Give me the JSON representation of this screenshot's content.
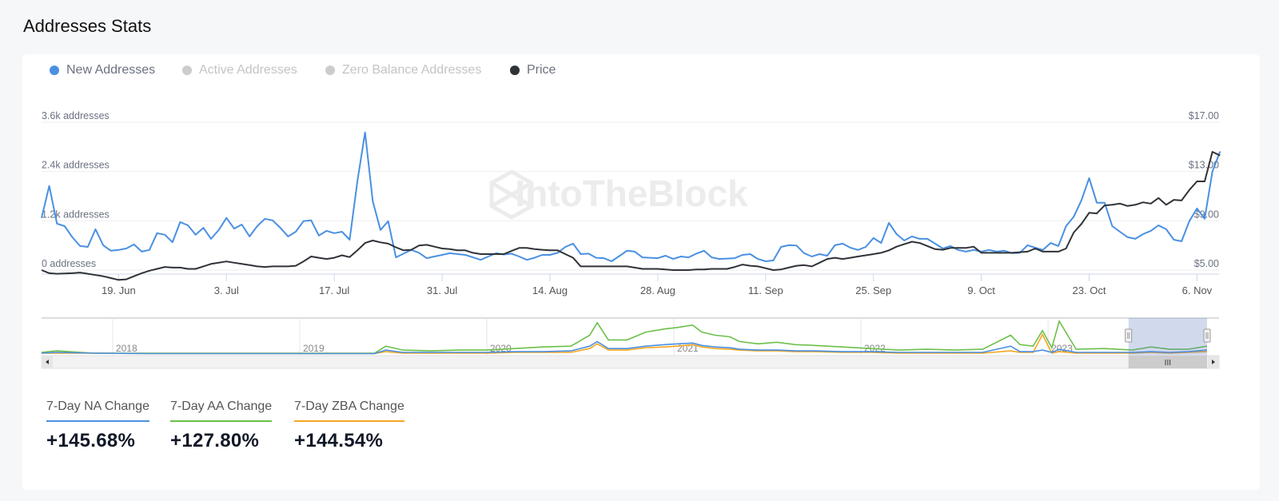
{
  "header": {
    "title": "Addresses Stats"
  },
  "watermark": "IntoTheBlock",
  "legend": [
    {
      "label": "New Addresses",
      "color": "#4a90e2",
      "active": true
    },
    {
      "label": "Active Addresses",
      "color": "#cccccc",
      "active": false
    },
    {
      "label": "Zero Balance Addresses",
      "color": "#cccccc",
      "active": false
    },
    {
      "label": "Price",
      "color": "#2f3338",
      "active": true
    }
  ],
  "chart_data": [
    {
      "type": "line",
      "title": "Addresses Stats",
      "x_start_date": "2023-06-09",
      "x_step_days": 1,
      "x_tick_labels": [
        "19. Jun",
        "3. Jul",
        "17. Jul",
        "31. Jul",
        "14. Aug",
        "28. Aug",
        "11. Sep",
        "25. Sep",
        "9. Oct",
        "23. Oct",
        "6. Nov"
      ],
      "x_tick_day_offsets": [
        10,
        24,
        38,
        52,
        66,
        80,
        94,
        108,
        122,
        136,
        150
      ],
      "y_left": {
        "label": "addresses",
        "range": [
          0,
          3600
        ],
        "ticks": [
          "0 addresses",
          "1.2k addresses",
          "2.4k addresses",
          "3.6k addresses"
        ]
      },
      "y_right": {
        "label": "price",
        "range": [
          5,
          17
        ],
        "ticks": [
          "$5.00",
          "$9.00",
          "$13.00",
          "$17.00"
        ]
      },
      "grid": true,
      "legend_position": "top-left",
      "series": [
        {
          "name": "New Addresses",
          "axis": "left",
          "color": "#4a90e2",
          "values": [
            1270,
            2050,
            1130,
            1070,
            800,
            585,
            565,
            995,
            605,
            470,
            490,
            525,
            625,
            450,
            490,
            900,
            860,
            680,
            1170,
            1090,
            860,
            1030,
            760,
            975,
            1270,
            1010,
            1110,
            820,
            1070,
            1250,
            1210,
            1030,
            820,
            935,
            1190,
            1210,
            840,
            955,
            900,
            935,
            740,
            2165,
            3350,
            1680,
            975,
            1190,
            310,
            400,
            490,
            420,
            290,
            330,
            370,
            410,
            390,
            370,
            310,
            250,
            330,
            410,
            380,
            400,
            330,
            250,
            300,
            370,
            370,
            420,
            565,
            645,
            390,
            400,
            300,
            290,
            215,
            340,
            470,
            450,
            310,
            300,
            290,
            350,
            270,
            330,
            310,
            400,
            470,
            310,
            270,
            280,
            290,
            370,
            390,
            270,
            215,
            235,
            565,
            605,
            600,
            410,
            330,
            390,
            350,
            605,
            645,
            545,
            490,
            565,
            780,
            660,
            1150,
            875,
            720,
            820,
            760,
            760,
            645,
            525,
            585,
            490,
            450,
            490,
            450,
            490,
            450,
            470,
            410,
            420,
            605,
            545,
            490,
            660,
            585,
            1070,
            1300,
            1700,
            2240,
            1640,
            1640,
            1070,
            935,
            800,
            760,
            875,
            955,
            1090,
            995,
            740,
            700,
            1190,
            1500,
            1250,
            2400,
            2890
          ]
        },
        {
          "name": "Price",
          "axis": "right",
          "color": "#2f3338",
          "values": [
            5.0,
            4.75,
            4.7,
            4.72,
            4.75,
            4.8,
            4.7,
            4.6,
            4.5,
            4.35,
            4.2,
            4.25,
            4.5,
            4.75,
            4.95,
            5.1,
            5.25,
            5.2,
            5.2,
            5.1,
            5.1,
            5.3,
            5.5,
            5.6,
            5.7,
            5.6,
            5.5,
            5.4,
            5.3,
            5.25,
            5.3,
            5.3,
            5.3,
            5.35,
            5.7,
            6.1,
            6.0,
            5.9,
            6.0,
            6.2,
            6.05,
            6.6,
            7.2,
            7.4,
            7.25,
            7.15,
            6.85,
            6.6,
            6.65,
            7.0,
            7.05,
            6.9,
            6.75,
            6.7,
            6.6,
            6.6,
            6.4,
            6.3,
            6.3,
            6.3,
            6.3,
            6.55,
            6.8,
            6.8,
            6.7,
            6.65,
            6.6,
            6.6,
            6.3,
            6.0,
            5.3,
            5.3,
            5.3,
            5.3,
            5.3,
            5.3,
            5.3,
            5.2,
            5.1,
            5.1,
            5.1,
            5.05,
            5.0,
            5.0,
            5.0,
            5.05,
            5.05,
            5.1,
            5.1,
            5.1,
            5.25,
            5.45,
            5.35,
            5.3,
            5.15,
            5.0,
            5.05,
            5.2,
            5.35,
            5.4,
            5.3,
            5.6,
            5.9,
            6.0,
            5.9,
            6.0,
            6.1,
            6.2,
            6.3,
            6.4,
            6.6,
            6.9,
            7.1,
            7.3,
            7.2,
            6.95,
            6.7,
            6.65,
            6.8,
            6.8,
            6.8,
            6.9,
            6.4,
            6.4,
            6.4,
            6.4,
            6.4,
            6.45,
            6.5,
            6.75,
            6.5,
            6.5,
            6.5,
            6.75,
            8.05,
            8.75,
            9.65,
            9.6,
            10.25,
            10.3,
            10.4,
            10.2,
            10.3,
            10.5,
            10.4,
            10.85,
            10.3,
            10.7,
            10.65,
            11.5,
            12.2,
            12.2,
            14.6,
            14.3
          ]
        }
      ]
    },
    {
      "type": "line",
      "title": "Navigator",
      "x_years": [
        2017.62,
        2017.7,
        2017.9,
        2018.2,
        2018.6,
        2019.0,
        2019.4,
        2019.46,
        2019.55,
        2019.7,
        2019.85,
        2020.0,
        2020.15,
        2020.3,
        2020.45,
        2020.55,
        2020.59,
        2020.65,
        2020.75,
        2020.85,
        2020.95,
        2021.02,
        2021.1,
        2021.15,
        2021.22,
        2021.3,
        2021.35,
        2021.45,
        2021.55,
        2021.65,
        2021.75,
        2021.9,
        2022.05,
        2022.2,
        2022.35,
        2022.5,
        2022.65,
        2022.8,
        2022.85,
        2022.92,
        2022.97,
        2023.02,
        2023.06,
        2023.15,
        2023.3,
        2023.45,
        2023.55,
        2023.65,
        2023.75,
        2023.85
      ],
      "x_range": [
        2017.62,
        2023.85
      ],
      "x_tick_labels": [
        "2018",
        "2019",
        "2020",
        "2021",
        "2022",
        "2023"
      ],
      "selected_range": [
        2023.43,
        2023.85
      ],
      "y_range_relative": [
        0,
        44
      ],
      "series": [
        {
          "name": "Active Addresses",
          "color": "#6cc04a",
          "values": [
            2,
            4,
            1,
            1,
            1,
            1,
            1,
            10,
            5,
            4,
            5,
            5,
            7,
            9,
            10,
            24,
            40,
            18,
            18,
            28,
            32,
            34,
            37,
            28,
            24,
            22,
            16,
            13,
            15,
            12,
            11,
            9,
            7,
            5,
            6,
            5,
            6,
            24,
            12,
            10,
            30,
            8,
            42,
            6,
            7,
            5,
            9,
            6,
            6,
            10
          ]
        },
        {
          "name": "Zero Balance Addresses",
          "color": "#f5a623",
          "values": [
            1,
            1,
            1,
            0.5,
            0.5,
            0.5,
            0.5,
            3,
            1,
            1,
            1,
            1,
            2,
            2,
            2,
            7,
            13,
            5,
            5,
            8,
            9,
            10,
            12,
            9,
            7,
            6,
            5,
            4,
            4,
            3,
            3,
            2,
            2,
            1,
            1,
            1,
            1,
            4,
            2,
            2,
            25,
            1,
            3,
            1,
            1,
            1,
            2,
            1,
            2,
            3
          ]
        },
        {
          "name": "New Addresses",
          "color": "#4a90e2",
          "values": [
            1,
            2,
            1,
            0.5,
            0.5,
            0.5,
            0.5,
            5,
            2,
            2,
            2,
            2,
            3,
            3,
            4,
            10,
            16,
            7,
            7,
            10,
            12,
            13,
            14,
            11,
            9,
            8,
            6,
            5,
            5,
            4,
            4,
            3,
            3,
            2,
            2,
            2,
            2,
            10,
            3,
            3,
            5,
            2,
            6,
            2,
            2,
            2,
            3,
            2,
            3,
            5
          ]
        }
      ]
    }
  ],
  "scrollbar": {
    "thumb_label": "III"
  },
  "stats": [
    {
      "label": "7-Day NA Change",
      "value": "+145.68%",
      "color": "#4a90e2"
    },
    {
      "label": "7-Day AA Change",
      "value": "+127.80%",
      "color": "#6cc04a"
    },
    {
      "label": "7-Day ZBA Change",
      "value": "+144.54%",
      "color": "#f5a623"
    }
  ]
}
